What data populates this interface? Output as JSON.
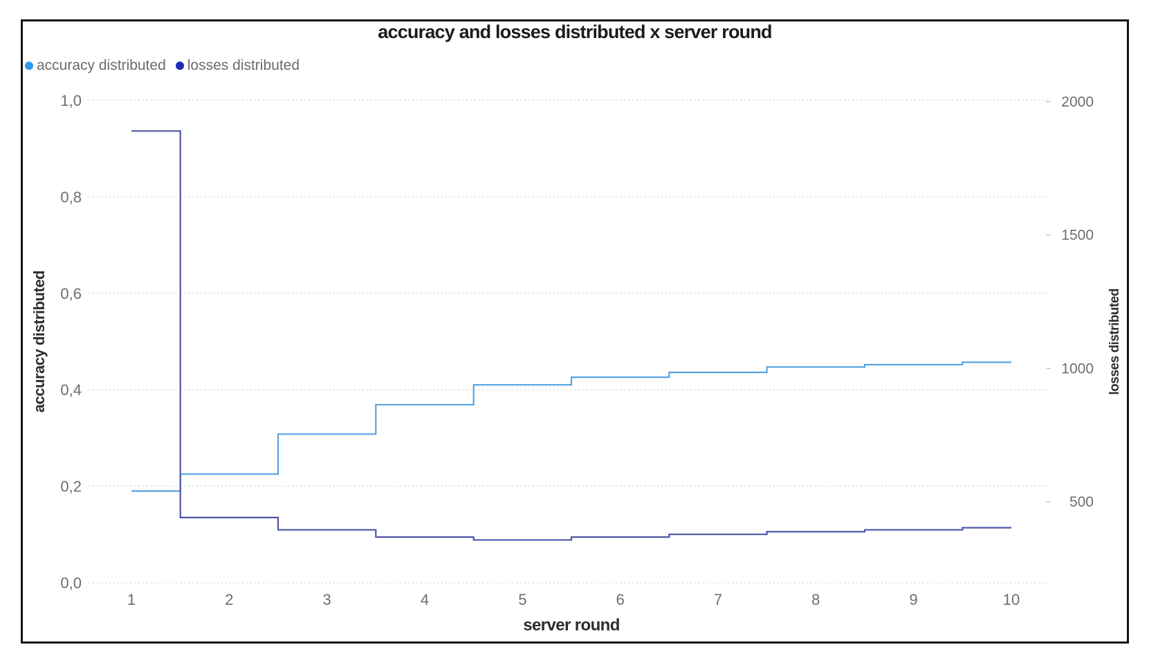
{
  "title": "accuracy and losses distributed x server round",
  "legend": {
    "items": [
      {
        "label": "accuracy distributed",
        "color": "#2D9BF3"
      },
      {
        "label": "losses distributed",
        "color": "#1B2DB9"
      }
    ]
  },
  "axes": {
    "x": {
      "title": "server round",
      "tick_labels": [
        "1",
        "2",
        "3",
        "4",
        "5",
        "6",
        "7",
        "8",
        "9",
        "10"
      ],
      "tick_values": [
        1,
        2,
        3,
        4,
        5,
        6,
        7,
        8,
        9,
        10
      ]
    },
    "left": {
      "title": "accuracy distributed",
      "tick_labels": [
        "1,0",
        "0,8",
        "0,6",
        "0,4",
        "0,2",
        "0,0"
      ],
      "tick_values": [
        1.0,
        0.8,
        0.6,
        0.4,
        0.2,
        0.0
      ],
      "range": [
        0,
        1.0
      ]
    },
    "right": {
      "title": "losses distributed",
      "tick_labels": [
        "2000",
        "1500",
        "1000",
        "500"
      ],
      "tick_values": [
        2000,
        1500,
        1000,
        500
      ],
      "range": [
        197,
        2005
      ]
    }
  },
  "chart_data": {
    "type": "line",
    "step": "middle",
    "title": "accuracy and losses distributed x server round",
    "xlabel": "server round",
    "ylabel_left": "accuracy distributed",
    "ylabel_right": "losses distributed",
    "x": [
      1,
      2,
      3,
      4,
      5,
      6,
      7,
      8,
      9,
      10
    ],
    "series": [
      {
        "name": "accuracy distributed",
        "axis": "left",
        "color": "#55A3E2",
        "values": [
          0.19,
          0.225,
          0.308,
          0.369,
          0.41,
          0.426,
          0.436,
          0.447,
          0.452,
          0.457
        ]
      },
      {
        "name": "losses distributed",
        "axis": "right",
        "color": "#4E55A8",
        "values": [
          1890,
          441,
          395,
          368,
          357,
          368,
          378,
          388,
          395,
          403
        ]
      }
    ],
    "left_ylim": [
      0,
      1.0
    ],
    "right_ylim": [
      197,
      2005
    ],
    "grid": {
      "color": "#D8D6D3",
      "dash": [
        1.8,
        4.2
      ],
      "on": true
    },
    "legend_position": "top-left"
  }
}
